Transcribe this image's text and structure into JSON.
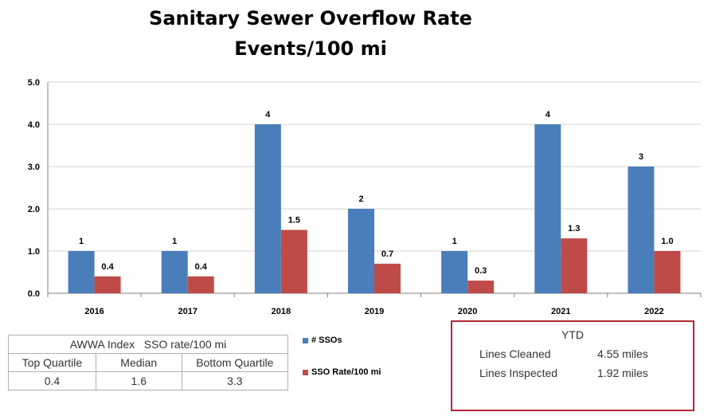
{
  "chart_data": {
    "type": "bar",
    "title": "Sanitary Sewer Overflow Rate",
    "subtitle": "Events/100 mi",
    "categories": [
      "2016",
      "2017",
      "2018",
      "2019",
      "2020",
      "2021",
      "2022"
    ],
    "series": [
      {
        "name": "# SSOs",
        "values": [
          1,
          1,
          4,
          2,
          1,
          4,
          3
        ],
        "labels": [
          "1",
          "1",
          "4",
          "2",
          "1",
          "4",
          "3"
        ],
        "color": "#4a7ebb"
      },
      {
        "name": "SSO Rate/100 mi",
        "values": [
          0.4,
          0.4,
          1.5,
          0.7,
          0.3,
          1.3,
          1.0
        ],
        "labels": [
          "0.4",
          "0.4",
          "1.5",
          "0.7",
          "0.3",
          "1.3",
          "1.0"
        ],
        "color": "#be4b48"
      }
    ],
    "ylim": [
      0,
      5
    ],
    "yticks": [
      "0.0",
      "1.0",
      "2.0",
      "3.0",
      "4.0",
      "5.0"
    ],
    "grid": true,
    "legend_position": "bottom-center"
  },
  "awwa_table": {
    "header": "AWWA Index   SSO rate/100 mi",
    "columns": [
      "Top Quartile",
      "Median",
      "Bottom Quartile"
    ],
    "values": [
      "0.4",
      "1.6",
      "3.3"
    ]
  },
  "ytd": {
    "title": "YTD",
    "rows": [
      {
        "label": "Lines Cleaned",
        "value": "4.55 miles"
      },
      {
        "label": "Lines Inspected",
        "value": "1.92 miles"
      }
    ]
  }
}
